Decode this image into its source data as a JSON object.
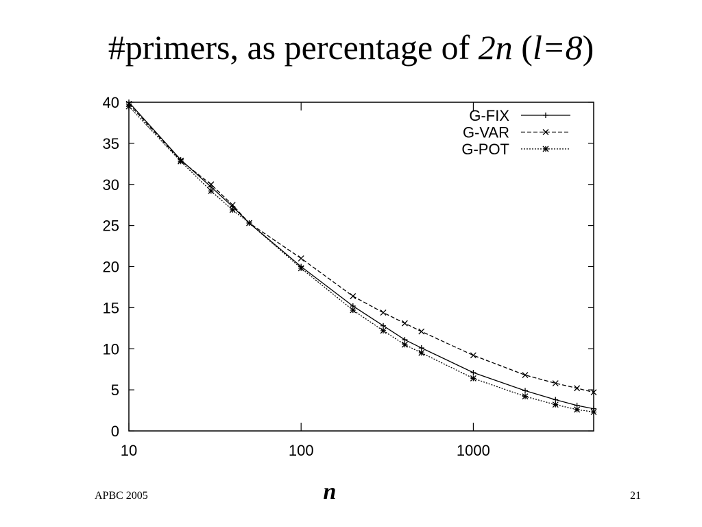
{
  "chart_data": {
    "type": "line",
    "title": [
      "#primers, as percentage of ",
      "2n",
      " (",
      "l=8",
      ")"
    ],
    "x_label": "n",
    "footer_left": "APBC 2005",
    "footer_right": "21",
    "x": [
      10,
      20,
      30,
      40,
      50,
      100,
      200,
      300,
      400,
      500,
      1000,
      2000,
      3000,
      4000,
      5000
    ],
    "xlim": [
      10,
      5000
    ],
    "xticks": [
      10,
      100,
      1000
    ],
    "xscale": "log",
    "ylim": [
      0,
      40
    ],
    "yticks": [
      0,
      5,
      10,
      15,
      20,
      25,
      30,
      35,
      40
    ],
    "legend": "top-right",
    "series": [
      {
        "name": "G-FIX",
        "color": "#000000",
        "marker": "+",
        "dash": "solid",
        "values": [
          40,
          33,
          29.7,
          27.3,
          25.3,
          20,
          15.2,
          12.8,
          11.1,
          10.1,
          7.1,
          4.9,
          3.8,
          3.1,
          2.7
        ]
      },
      {
        "name": "G-VAR",
        "color": "#000000",
        "marker": "x",
        "dash": "dashed",
        "values": [
          39.8,
          32.9,
          30,
          27.5,
          25.3,
          21,
          16.4,
          14.4,
          13.1,
          12.1,
          9.2,
          6.8,
          5.8,
          5.2,
          4.7
        ]
      },
      {
        "name": "G-POT",
        "color": "#000000",
        "marker": "*",
        "dash": "dotted",
        "values": [
          39.5,
          32.8,
          29.2,
          26.9,
          25.3,
          19.8,
          14.7,
          12.2,
          10.5,
          9.5,
          6.4,
          4.2,
          3.2,
          2.6,
          2.3
        ]
      }
    ]
  }
}
